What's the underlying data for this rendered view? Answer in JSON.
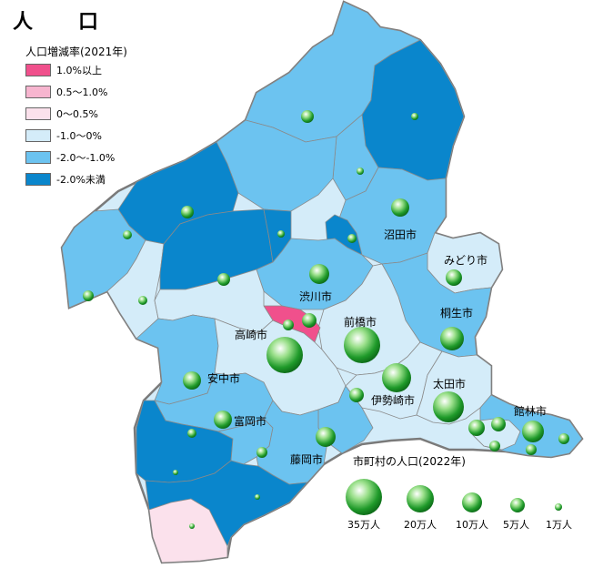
{
  "map_title": "人　口",
  "legend": {
    "title": "人口増減率(2021年)",
    "items": [
      {
        "label": "1.0%以上",
        "color": "#f0508c"
      },
      {
        "label": "0.5〜1.0%",
        "color": "#f7b5cf"
      },
      {
        "label": "0〜0.5%",
        "color": "#fbe1ec"
      },
      {
        "label": "-1.0〜0%",
        "color": "#d4ecf9"
      },
      {
        "label": "-2.0〜-1.0%",
        "color": "#6cc3f0"
      },
      {
        "label": "-2.0%未満",
        "color": "#0a86cc"
      }
    ]
  },
  "cities": {
    "numata": "沼田市",
    "midori": "みどり市",
    "shibukawa": "渋川市",
    "maebashi": "前橋市",
    "kiryu": "桐生市",
    "takasaki": "高崎市",
    "annaka": "安中市",
    "isesaki": "伊勢崎市",
    "ota": "太田市",
    "tatebayashi": "館林市",
    "tomioka": "富岡市",
    "fujioka": "藤岡市"
  },
  "population_legend": {
    "title": "市町村の人口(2022年)",
    "items": [
      "35万人",
      "20万人",
      "10万人",
      "5万人",
      "1万人"
    ]
  }
}
